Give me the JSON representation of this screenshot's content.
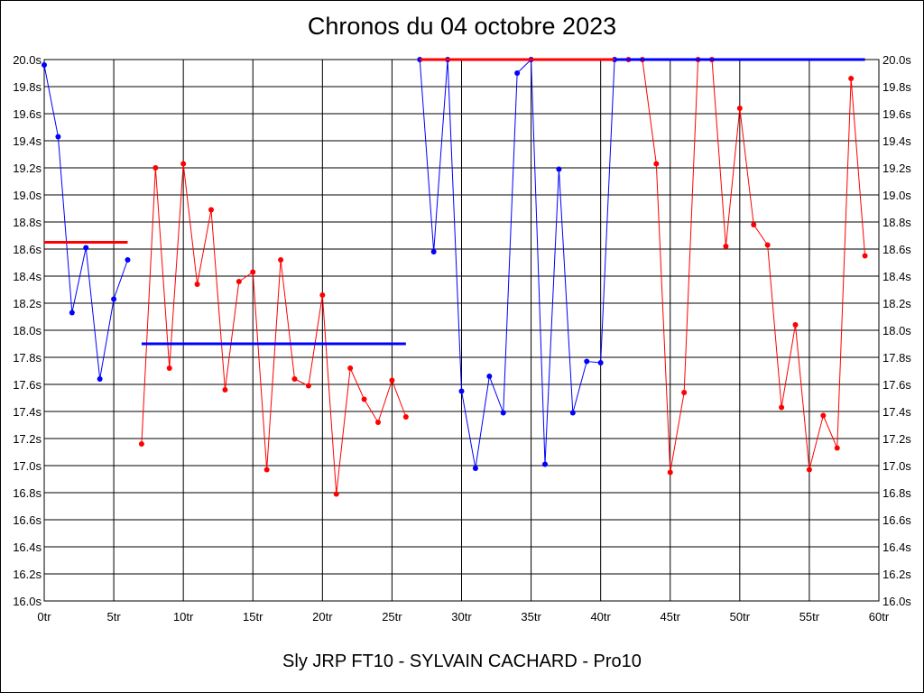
{
  "chart_data": {
    "type": "line",
    "title": "Chronos du 04 octobre 2023",
    "footer": "Sly JRP FT10 - SYLVAIN CACHARD - Pro10",
    "xlabel": "",
    "ylabel": "",
    "xlim": [
      0,
      60
    ],
    "ylim": [
      16.0,
      20.0
    ],
    "grid": true,
    "x_ticks": [
      "0tr",
      "5tr",
      "10tr",
      "15tr",
      "20tr",
      "25tr",
      "30tr",
      "35tr",
      "40tr",
      "45tr",
      "50tr",
      "55tr",
      "60tr"
    ],
    "y_ticks": [
      "16.0s",
      "16.2s",
      "16.4s",
      "16.6s",
      "16.8s",
      "17.0s",
      "17.2s",
      "17.4s",
      "17.6s",
      "17.8s",
      "18.0s",
      "18.2s",
      "18.4s",
      "18.6s",
      "18.8s",
      "19.0s",
      "19.2s",
      "19.4s",
      "19.6s",
      "19.8s",
      "20.0s"
    ],
    "series": [
      {
        "color": "#0000ff",
        "x": [
          0,
          1,
          2,
          3,
          4,
          5,
          6
        ],
        "values": [
          19.96,
          19.43,
          18.13,
          18.61,
          17.64,
          18.23,
          18.52
        ],
        "average": {
          "x": [
            0,
            6
          ],
          "y": 18.65,
          "color": "#ff0000"
        }
      },
      {
        "color": "#ff0000",
        "x": [
          7,
          8,
          9,
          10,
          11,
          12,
          13,
          14,
          15,
          16,
          17,
          18,
          19,
          20,
          21,
          22,
          23,
          24,
          25,
          26
        ],
        "values": [
          17.16,
          19.2,
          17.72,
          19.23,
          18.34,
          18.89,
          17.56,
          18.36,
          18.43,
          16.97,
          18.52,
          17.64,
          17.59,
          18.26,
          16.79,
          17.72,
          17.49,
          17.32,
          17.63,
          17.36
        ],
        "average": {
          "x": [
            7,
            26
          ],
          "y": 17.9,
          "color": "#0000ff"
        }
      },
      {
        "color": "#0000ff",
        "x": [
          27,
          28,
          29,
          30,
          31,
          32,
          33,
          34,
          35,
          36,
          37,
          38,
          39,
          40,
          41
        ],
        "values": [
          20.0,
          18.58,
          20.0,
          17.55,
          16.98,
          17.66,
          17.39,
          19.9,
          20.0,
          17.01,
          19.19,
          17.39,
          17.77,
          17.76,
          20.0
        ],
        "average": {
          "x": [
            27,
            41
          ],
          "y": 20.0,
          "color": "#ff0000"
        }
      },
      {
        "color": "#ff0000",
        "x": [
          42,
          43,
          44,
          45,
          46,
          47,
          48,
          49,
          50,
          51,
          52,
          53,
          54,
          55,
          56,
          57,
          58,
          59
        ],
        "values": [
          20.0,
          20.0,
          19.23,
          16.95,
          17.54,
          20.0,
          20.0,
          18.62,
          19.64,
          18.78,
          18.63,
          17.43,
          18.04,
          16.97,
          17.37,
          17.13,
          19.86,
          18.55
        ],
        "average": {
          "x": [
            41,
            59
          ],
          "y": 20.0,
          "color": "#0000ff"
        }
      }
    ]
  }
}
